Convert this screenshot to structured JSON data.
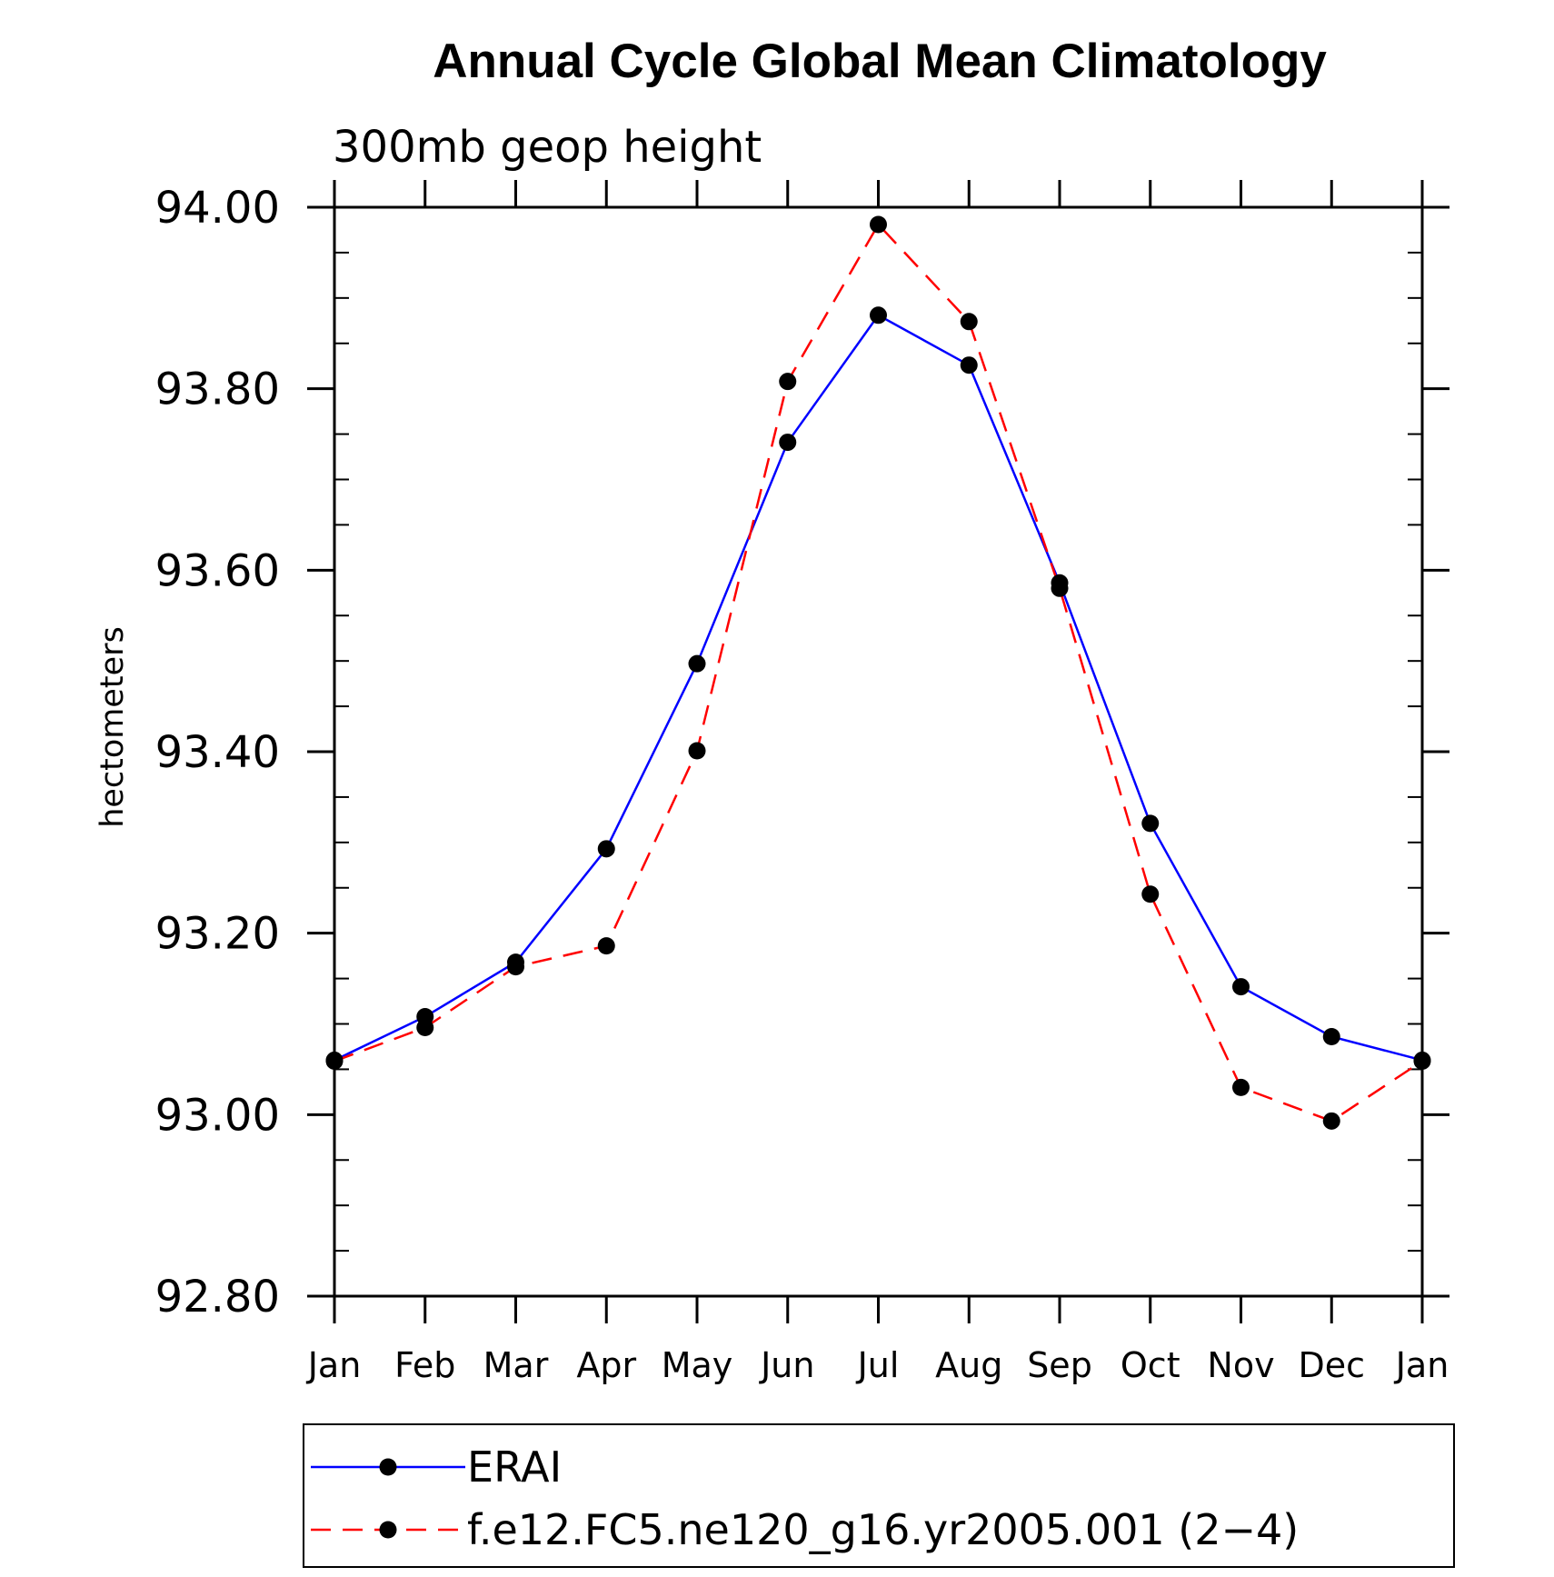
{
  "chart_data": {
    "type": "line",
    "title": "Annual Cycle Global Mean Climatology",
    "subtitle": "300mb geop height",
    "ylabel": "hectometers",
    "xlabel": "",
    "categories": [
      "Jan",
      "Feb",
      "Mar",
      "Apr",
      "May",
      "Jun",
      "Jul",
      "Aug",
      "Sep",
      "Oct",
      "Nov",
      "Dec",
      "Jan"
    ],
    "ylim": [
      92.8,
      94.0
    ],
    "y_ticks": [
      92.8,
      93.0,
      93.2,
      93.4,
      93.6,
      93.8,
      94.0
    ],
    "y_tick_labels": [
      "92.80",
      "93.00",
      "93.20",
      "93.40",
      "93.60",
      "93.80",
      "94.00"
    ],
    "legend_position": "bottom",
    "series": [
      {
        "name": "ERAI",
        "color": "#0000ff",
        "dash": "solid",
        "values": [
          93.06,
          93.108,
          93.168,
          93.293,
          93.497,
          93.741,
          93.881,
          93.826,
          93.586,
          93.321,
          93.141,
          93.086,
          93.06
        ]
      },
      {
        "name": "f.e12.FC5.ne120_g16.yr2005.001 (2−4)",
        "color": "#ff0000",
        "dash": "dashed",
        "values": [
          93.059,
          93.096,
          93.163,
          93.186,
          93.401,
          93.808,
          93.981,
          93.874,
          93.58,
          93.243,
          93.03,
          92.993,
          93.059
        ]
      }
    ]
  }
}
